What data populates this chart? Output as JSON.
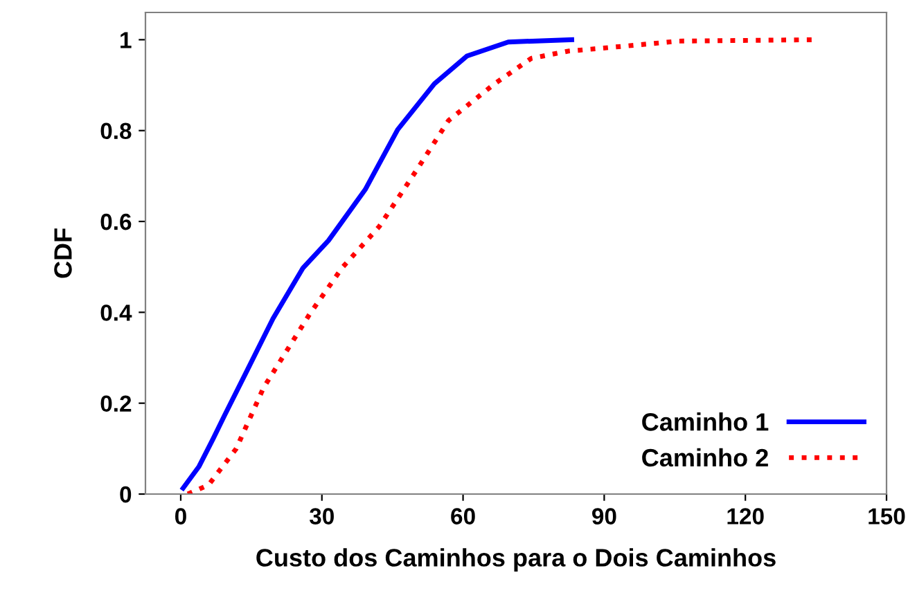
{
  "chart_data": {
    "type": "line",
    "xlabel": "Custo dos Caminhos para o Dois Caminhos",
    "ylabel": "CDF",
    "xlim": [
      -7.5,
      150
    ],
    "xticks": [
      0,
      30,
      60,
      90,
      120,
      150
    ],
    "ylim": [
      0,
      1.06
    ],
    "yticks": [
      0,
      0.2,
      0.4,
      0.6,
      0.8,
      1
    ],
    "legend": "bottom right",
    "grid": false,
    "series": [
      {
        "name": "Caminho 1",
        "color": "#0000ff",
        "line_style": "solid",
        "x": [
          0.5,
          3.9,
          6.9,
          9.3,
          14.2,
          19.6,
          26,
          31.4,
          39.2,
          46.1,
          53.9,
          60.8,
          69.6,
          83.1
        ],
        "values": [
          0.013,
          0.061,
          0.122,
          0.173,
          0.274,
          0.386,
          0.498,
          0.558,
          0.67,
          0.802,
          0.903,
          0.964,
          0.995,
          1.0
        ]
      },
      {
        "name": "Caminho 2",
        "color": "#ff0000",
        "line_style": "dotted",
        "x": [
          1.5,
          5.9,
          11.8,
          17.6,
          27.4,
          34.3,
          42.2,
          50,
          56.9,
          66.7,
          74.5,
          82.4,
          88.2,
          105.9,
          134.3
        ],
        "values": [
          0,
          0.02,
          0.1,
          0.234,
          0.396,
          0.498,
          0.589,
          0.711,
          0.822,
          0.903,
          0.959,
          0.975,
          0.98,
          0.997,
          1.0
        ]
      }
    ]
  }
}
